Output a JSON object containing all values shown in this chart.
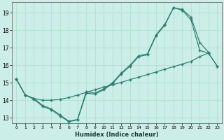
{
  "title": "",
  "xlabel": "Humidex (Indice chaleur)",
  "background_color": "#cceee8",
  "grid_color": "#aaddcc",
  "line_color": "#2a7f6f",
  "xlim": [
    -0.5,
    23.5
  ],
  "ylim": [
    12.7,
    19.6
  ],
  "xticks": [
    0,
    1,
    2,
    3,
    4,
    5,
    6,
    7,
    8,
    9,
    10,
    11,
    12,
    13,
    14,
    15,
    16,
    17,
    18,
    19,
    20,
    21,
    22,
    23
  ],
  "yticks": [
    13,
    14,
    15,
    16,
    17,
    18,
    19
  ],
  "line1_x": [
    0,
    1,
    2,
    3,
    4,
    5,
    6,
    7,
    8,
    9,
    10,
    11,
    12,
    13,
    14,
    15,
    16,
    17,
    18,
    19,
    20,
    21,
    22
  ],
  "line1_y": [
    15.2,
    14.3,
    14.1,
    13.7,
    13.5,
    13.15,
    12.8,
    12.9,
    14.5,
    14.4,
    14.65,
    15.0,
    15.55,
    16.0,
    16.55,
    16.65,
    17.75,
    18.35,
    19.3,
    19.2,
    18.75,
    17.3,
    16.75
  ],
  "line2_x": [
    0,
    1,
    2,
    3,
    4,
    5,
    6,
    7,
    8,
    9,
    10,
    11,
    12,
    13,
    14,
    15,
    16,
    17,
    18,
    19,
    20,
    21,
    22,
    23
  ],
  "line2_y": [
    15.2,
    14.3,
    14.05,
    13.65,
    13.45,
    13.1,
    12.77,
    12.87,
    14.4,
    14.35,
    14.6,
    14.95,
    15.5,
    15.95,
    16.5,
    16.6,
    17.7,
    18.3,
    19.3,
    19.15,
    18.6,
    16.85,
    16.7,
    15.95
  ],
  "line3_x": [
    0,
    1,
    2,
    3,
    4,
    5,
    6,
    7,
    8,
    9,
    10,
    11,
    12,
    13,
    14,
    15,
    16,
    17,
    18,
    19,
    20,
    21,
    22,
    23
  ],
  "line3_y": [
    15.2,
    14.3,
    14.1,
    14.0,
    14.0,
    14.05,
    14.15,
    14.3,
    14.45,
    14.6,
    14.75,
    14.88,
    15.02,
    15.18,
    15.32,
    15.47,
    15.62,
    15.78,
    15.92,
    16.07,
    16.22,
    16.5,
    16.7,
    15.95
  ]
}
